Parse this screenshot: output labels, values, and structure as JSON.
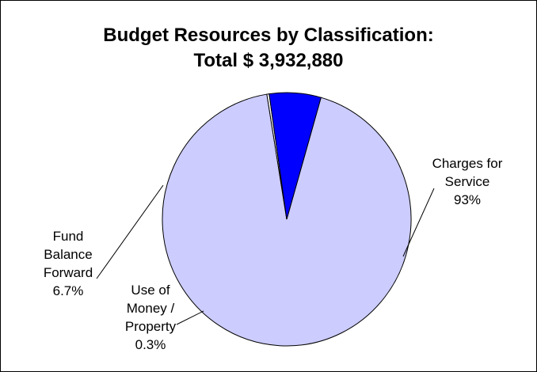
{
  "chart_data": {
    "type": "pie",
    "title_line1": "Budget Resources  by Classification:",
    "title_line2": "Total $ 3,932,880",
    "slices": [
      {
        "label_lines": [
          "Charges for",
          "Service",
          "93%"
        ],
        "value": 93,
        "color": "#ccccff"
      },
      {
        "label_lines": [
          "Use of",
          "Money /",
          "Property",
          "0.3%"
        ],
        "value": 0.3,
        "color": "#ffffff"
      },
      {
        "label_lines": [
          "Fund",
          "Balance",
          "Forward",
          "6.7%"
        ],
        "value": 6.7,
        "color": "#0000ff"
      }
    ],
    "legend": "none"
  }
}
